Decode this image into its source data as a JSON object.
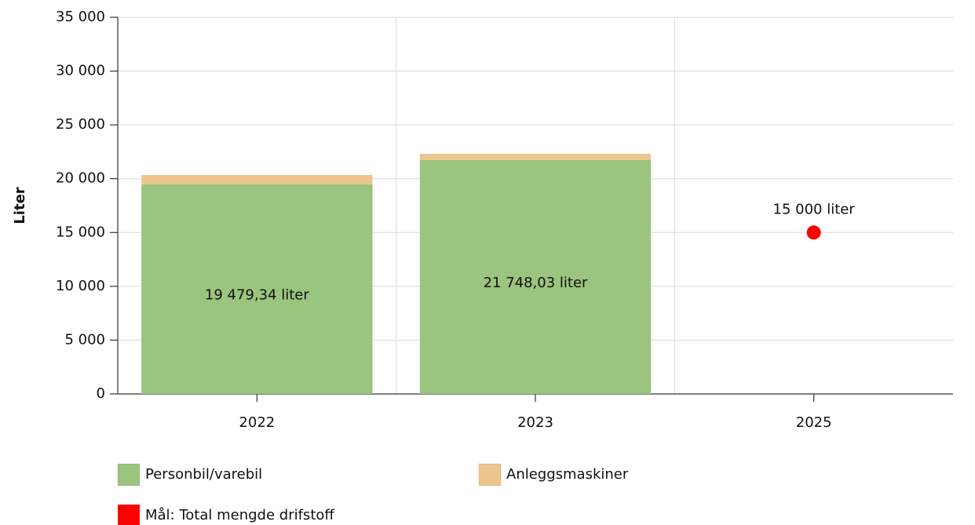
{
  "chart_data": {
    "type": "bar",
    "stacked": true,
    "y_label": "Liter",
    "categories": [
      "2022",
      "2023",
      "2025"
    ],
    "series": [
      {
        "name": "Personbil/varebil",
        "type": "bar",
        "color": "#9bc47f",
        "values": [
          19479.34,
          21748.03,
          null
        ],
        "value_labels": [
          "19 479,34 liter",
          "21 748,03 liter",
          null
        ]
      },
      {
        "name": "Anleggsmaskiner",
        "type": "bar",
        "color": "#ecc58f",
        "values": [
          870,
          570,
          null
        ]
      },
      {
        "name": "Mål: Total mengde drifstoff",
        "type": "scatter",
        "color": "#ff0000",
        "values": [
          null,
          null,
          15000
        ],
        "value_labels": [
          null,
          null,
          "15 000 liter"
        ]
      }
    ],
    "ylim": [
      0,
      35000
    ],
    "yticks": [
      {
        "value": 0,
        "label": "0"
      },
      {
        "value": 5000,
        "label": "5 000"
      },
      {
        "value": 10000,
        "label": "10 000"
      },
      {
        "value": 15000,
        "label": "15 000"
      },
      {
        "value": 20000,
        "label": "20 000"
      },
      {
        "value": 25000,
        "label": "25 000"
      },
      {
        "value": 30000,
        "label": "30 000"
      },
      {
        "value": 35000,
        "label": "35 000"
      }
    ],
    "grid": true
  }
}
